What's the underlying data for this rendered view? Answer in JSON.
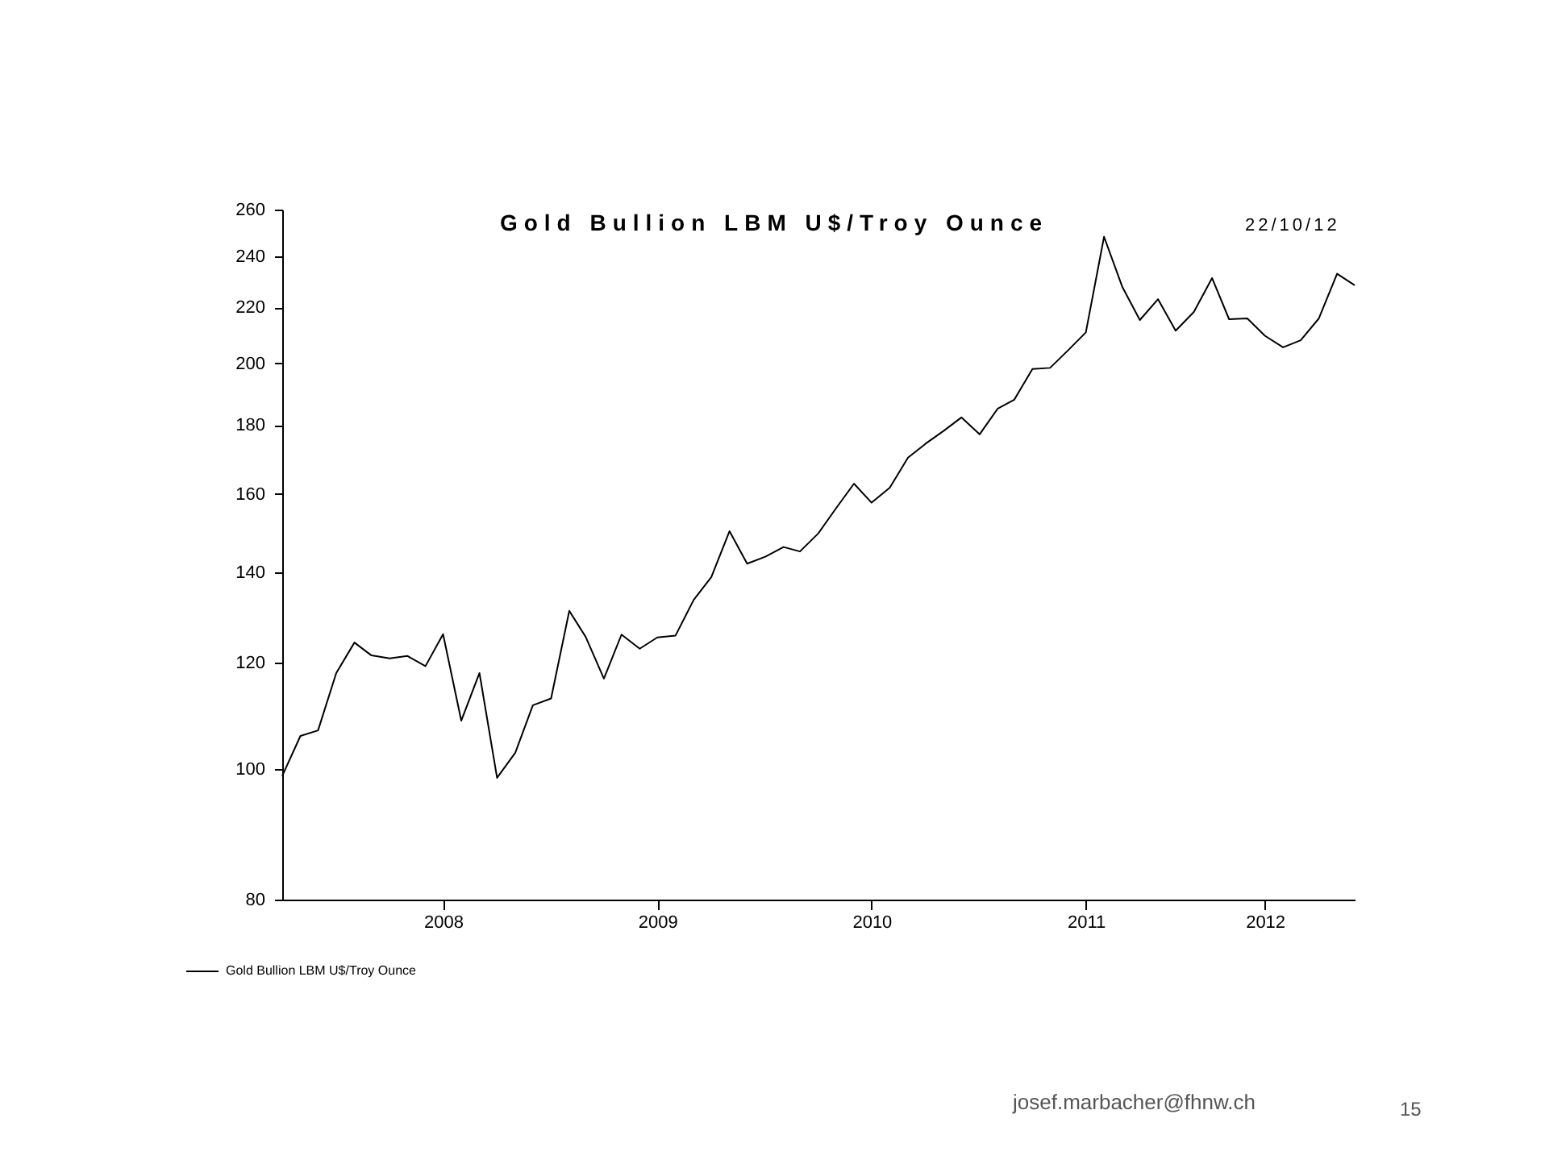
{
  "chart_data": {
    "type": "line",
    "title": "Gold Bullion LBM U$/Troy Ounce",
    "subtitle": "22/10/12",
    "x": [
      "2007-10",
      "2007-11",
      "2007-12",
      "2008-01",
      "2008-02",
      "2008-03",
      "2008-04",
      "2008-05",
      "2008-06",
      "2008-07",
      "2008-08",
      "2008-09",
      "2008-10",
      "2008-11",
      "2008-12",
      "2009-01",
      "2009-02",
      "2009-03",
      "2009-04",
      "2009-05",
      "2009-06",
      "2009-07",
      "2009-08",
      "2009-09",
      "2009-10",
      "2009-11",
      "2009-12",
      "2010-01",
      "2010-02",
      "2010-03",
      "2010-04",
      "2010-05",
      "2010-06",
      "2010-07",
      "2010-08",
      "2010-09",
      "2010-10",
      "2010-11",
      "2010-12",
      "2011-01",
      "2011-02",
      "2011-03",
      "2011-04",
      "2011-05",
      "2011-06",
      "2011-07",
      "2011-08",
      "2011-09",
      "2011-10",
      "2011-11",
      "2011-12",
      "2012-01",
      "2012-02",
      "2012-03",
      "2012-04",
      "2012-05",
      "2012-06",
      "2012-07",
      "2012-08",
      "2012-09",
      "2012-10"
    ],
    "series": [
      {
        "name": "Gold Bullion LBM U$/Troy Ounce",
        "color": "#000000",
        "values": [
          98.8,
          105.8,
          106.8,
          117.8,
          124.1,
          121.4,
          120.8,
          121.3,
          119.2,
          125.9,
          108.6,
          117.8,
          98.5,
          102.8,
          111.5,
          112.8,
          131.0,
          125.3,
          116.7,
          125.8,
          122.8,
          125.2,
          125.6,
          133.5,
          138.8,
          150.1,
          142.0,
          143.7,
          146.1,
          145.0,
          149.5,
          156.0,
          162.8,
          157.6,
          161.7,
          170.2,
          174.3,
          178.2,
          182.3,
          177.1,
          185.1,
          187.9,
          198.0,
          198.4,
          204.5,
          210.8,
          248.2,
          227.9,
          215.3,
          223.1,
          211.4,
          218.3,
          231.3,
          215.6,
          215.9,
          209.6,
          205.5,
          208.0,
          215.9,
          233.0,
          228.5
        ]
      }
    ],
    "xlim": [
      "2007-10",
      "2012-10"
    ],
    "xticks": [
      {
        "value": "2008-07",
        "label": "2008"
      },
      {
        "value": "2009-07",
        "label": "2009"
      },
      {
        "value": "2010-07",
        "label": "2010"
      },
      {
        "value": "2011-07",
        "label": "2011"
      },
      {
        "value": "2012-05",
        "label": "2012"
      }
    ],
    "ylim": [
      80,
      260
    ],
    "yticks": [
      80,
      100,
      120,
      140,
      160,
      180,
      200,
      220,
      240,
      260
    ],
    "log": "y",
    "grid": false,
    "legend": "bottom left",
    "line_style": "solid",
    "marker": "none",
    "annotations": [
      "josef.marbacher@fhnw.ch",
      "15"
    ]
  }
}
